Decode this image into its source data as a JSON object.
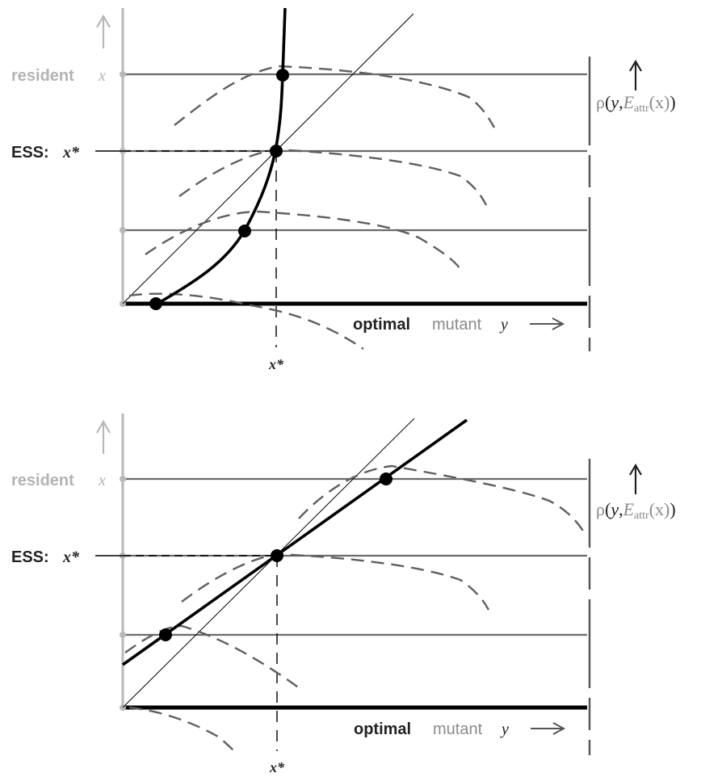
{
  "colors": {
    "axis_gray": "#b8b8b8",
    "line_gray": "#6b6b6b",
    "dash_gray": "#5f5f5f",
    "black": "#000000",
    "label_gray": "#b3b3b3"
  },
  "panels": [
    {
      "resident_label": "resident",
      "resident_var": "x",
      "ess_label": "ESS:",
      "ess_var": "x*",
      "axis_bold_label": "optimal",
      "axis_label": "mutant",
      "axis_var": "y",
      "bottom_tick_label": "x*",
      "rho_symbol": "ρ",
      "rho_open": "(",
      "rho_y": "y",
      "rho_comma": ",",
      "rho_E": "E",
      "rho_sub": "attr",
      "rho_arg": "(x)",
      "rho_close": ")"
    },
    {
      "resident_label": "resident",
      "resident_var": "x",
      "ess_label": "ESS:",
      "ess_var": "x*",
      "axis_bold_label": "optimal",
      "axis_label": "mutant",
      "axis_var": "y",
      "bottom_tick_label": "x*",
      "rho_symbol": "ρ",
      "rho_open": "(",
      "rho_y": "y",
      "rho_comma": ",",
      "rho_E": "E",
      "rho_sub": "attr",
      "rho_arg": "(x)",
      "rho_close": ")"
    }
  ]
}
